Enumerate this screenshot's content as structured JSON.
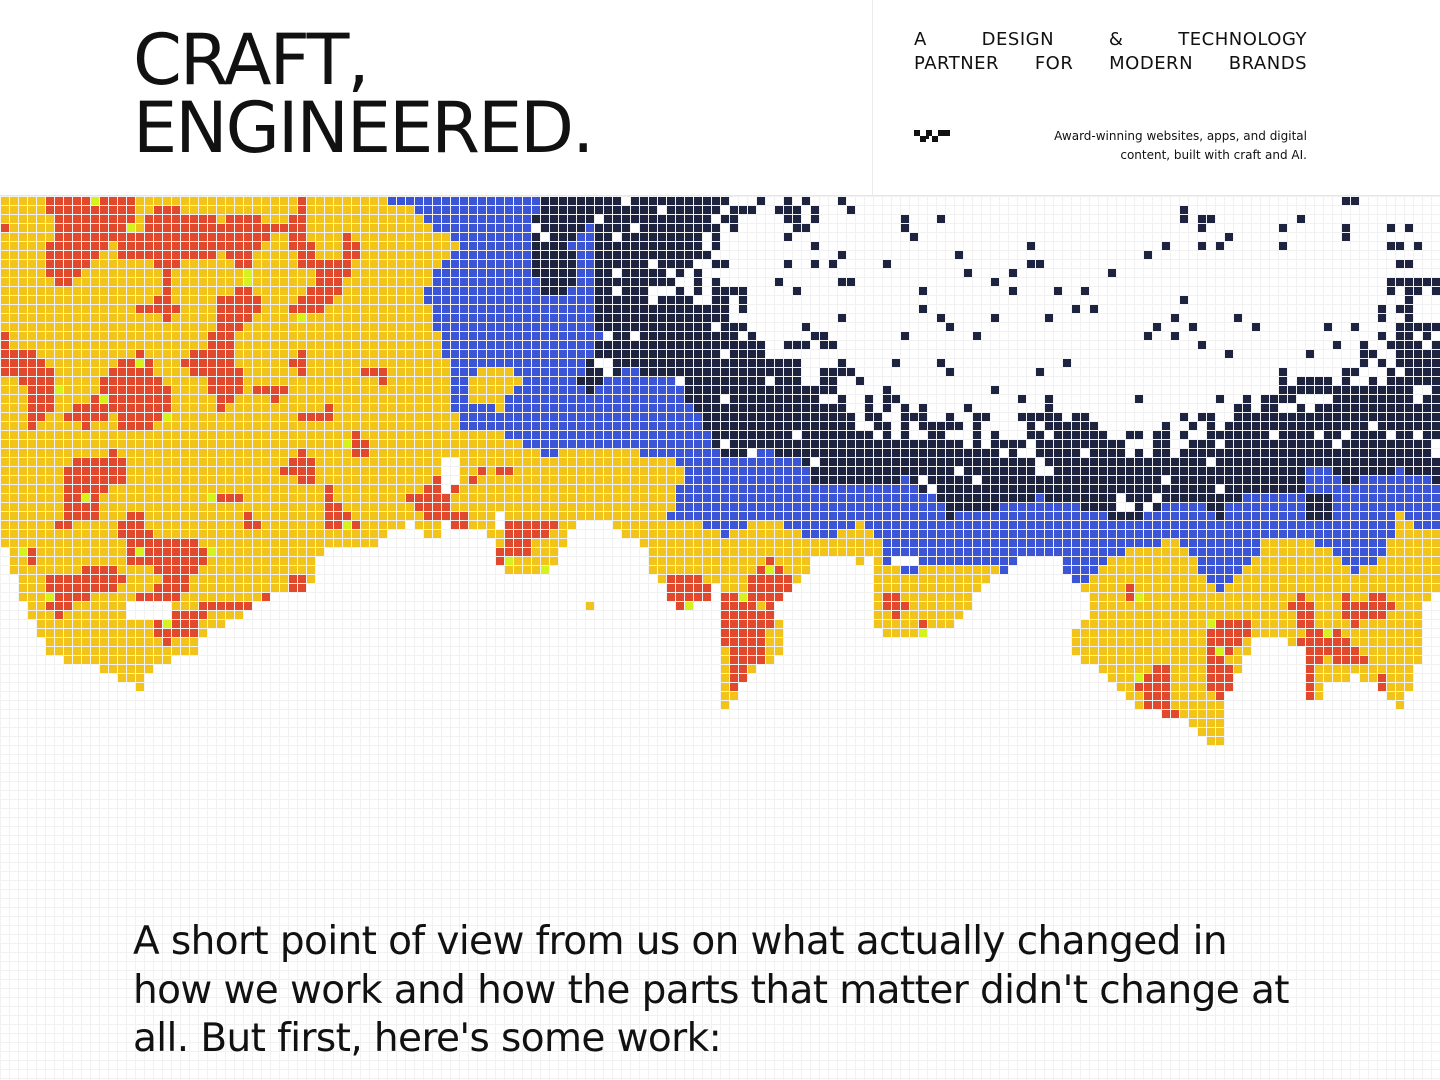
{
  "header": {
    "headline": [
      "CRAFT,",
      "ENGINEERED."
    ],
    "tagline": [
      "A DESIGN & TECHNOLOGY",
      "PARTNER FOR MODERN BRANDS"
    ],
    "description": [
      "Award-winning websites, apps, and digital",
      "content, built with craft and AI."
    ]
  },
  "intro": "A short point of view from us on what actually changed in how we work and how the parts that matter didn't change at all. But first, here's some work:"
}
